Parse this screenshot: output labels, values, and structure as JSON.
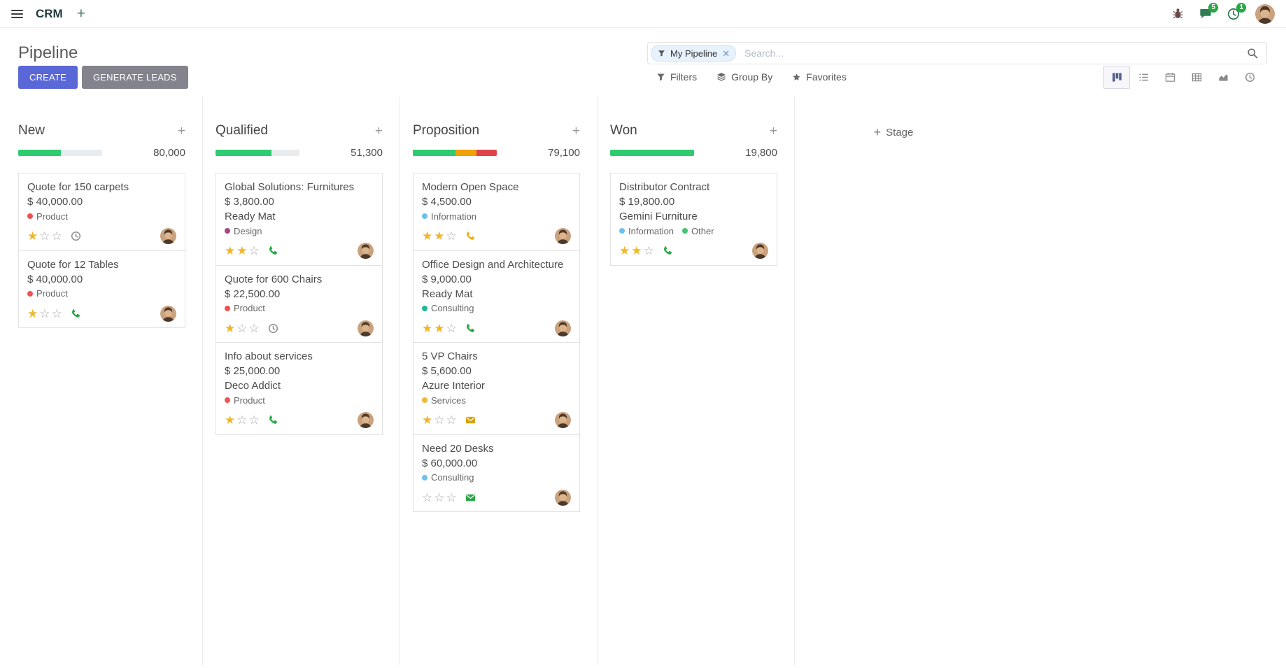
{
  "navbar": {
    "app_name": "CRM",
    "message_badge": "5",
    "activity_badge": "1"
  },
  "colors": {
    "primary_button": "#5a67d6",
    "secondary_button": "#82838c",
    "progress_green": "#2ecb71",
    "progress_yellow": "#f0a009",
    "progress_red": "#df444a",
    "star_gold": "#efb62d"
  },
  "control_panel": {
    "title": "Pipeline",
    "search_placeholder": "Search...",
    "facet_label": "My Pipeline",
    "create_label": "CREATE",
    "generate_leads_label": "GENERATE LEADS",
    "filters_label": "Filters",
    "group_by_label": "Group By",
    "favorites_label": "Favorites"
  },
  "view_switcher": [
    "kanban",
    "list",
    "calendar",
    "pivot",
    "graph",
    "activity"
  ],
  "kanban": {
    "add_stage_label": "Stage",
    "stars_max": 3,
    "columns": [
      {
        "title": "New",
        "counter": "80,000",
        "progress": [
          {
            "color": "#2ecb71",
            "pct": 51
          },
          {
            "color": "#e9ecef",
            "pct": 49
          }
        ],
        "cards": [
          {
            "title": "Quote for 150 carpets",
            "amount": "$ 40,000.00",
            "partner": "",
            "tags": [
              {
                "label": "Product",
                "color": "#ef5350"
              }
            ],
            "stars_filled": 1,
            "activity": {
              "icon": "clock",
              "color": "#8f8f8f"
            }
          },
          {
            "title": "Quote for 12 Tables",
            "amount": "$ 40,000.00",
            "partner": "",
            "tags": [
              {
                "label": "Product",
                "color": "#ef5350"
              }
            ],
            "stars_filled": 1,
            "activity": {
              "icon": "phone",
              "color": "#28a745"
            }
          }
        ]
      },
      {
        "title": "Qualified",
        "counter": "51,300",
        "progress": [
          {
            "color": "#2ecb71",
            "pct": 67
          },
          {
            "color": "#e9ecef",
            "pct": 33
          }
        ],
        "cards": [
          {
            "title": "Global Solutions: Furnitures",
            "amount": "$ 3,800.00",
            "partner": "Ready Mat",
            "tags": [
              {
                "label": "Design",
                "color": "#a24689"
              }
            ],
            "stars_filled": 2,
            "activity": {
              "icon": "phone",
              "color": "#28a745"
            }
          },
          {
            "title": "Quote for 600 Chairs",
            "amount": "$ 22,500.00",
            "partner": "",
            "tags": [
              {
                "label": "Product",
                "color": "#ef5350"
              }
            ],
            "stars_filled": 1,
            "activity": {
              "icon": "clock",
              "color": "#8f8f8f"
            }
          },
          {
            "title": "Info about services",
            "amount": "$ 25,000.00",
            "partner": "Deco Addict",
            "tags": [
              {
                "label": "Product",
                "color": "#ef5350"
              }
            ],
            "stars_filled": 1,
            "activity": {
              "icon": "phone",
              "color": "#28a745"
            }
          }
        ]
      },
      {
        "title": "Proposition",
        "counter": "79,100",
        "progress": [
          {
            "color": "#2ecb71",
            "pct": 51
          },
          {
            "color": "#f0a009",
            "pct": 25
          },
          {
            "color": "#df444a",
            "pct": 24
          }
        ],
        "cards": [
          {
            "title": "Modern Open Space",
            "amount": "$ 4,500.00",
            "partner": "",
            "tags": [
              {
                "label": "Information",
                "color": "#6cc1ed"
              }
            ],
            "stars_filled": 2,
            "activity": {
              "icon": "phone",
              "color": "#efb016"
            }
          },
          {
            "title": "Office Design and Architecture",
            "amount": "$ 9,000.00",
            "partner": "Ready Mat",
            "tags": [
              {
                "label": "Consulting",
                "color": "#21b799"
              }
            ],
            "stars_filled": 2,
            "activity": {
              "icon": "phone",
              "color": "#28a745"
            }
          },
          {
            "title": "5 VP Chairs",
            "amount": "$ 5,600.00",
            "partner": "Azure Interior",
            "tags": [
              {
                "label": "Services",
                "color": "#efb839"
              }
            ],
            "stars_filled": 1,
            "activity": {
              "icon": "envelope",
              "color": "#d9a300"
            }
          },
          {
            "title": "Need 20 Desks",
            "amount": "$ 60,000.00",
            "partner": "",
            "tags": [
              {
                "label": "Consulting",
                "color": "#6cc1ed"
              }
            ],
            "stars_filled": 0,
            "activity": {
              "icon": "envelope",
              "color": "#28a745"
            }
          }
        ]
      },
      {
        "title": "Won",
        "counter": "19,800",
        "progress": [
          {
            "color": "#2ecb71",
            "pct": 100
          }
        ],
        "cards": [
          {
            "title": "Distributor Contract",
            "amount": "$ 19,800.00",
            "partner": "Gemini Furniture",
            "tags": [
              {
                "label": "Information",
                "color": "#6cc1ed"
              },
              {
                "label": "Other",
                "color": "#47c26d"
              }
            ],
            "stars_filled": 2,
            "activity": {
              "icon": "phone",
              "color": "#28a745"
            }
          }
        ]
      }
    ]
  }
}
